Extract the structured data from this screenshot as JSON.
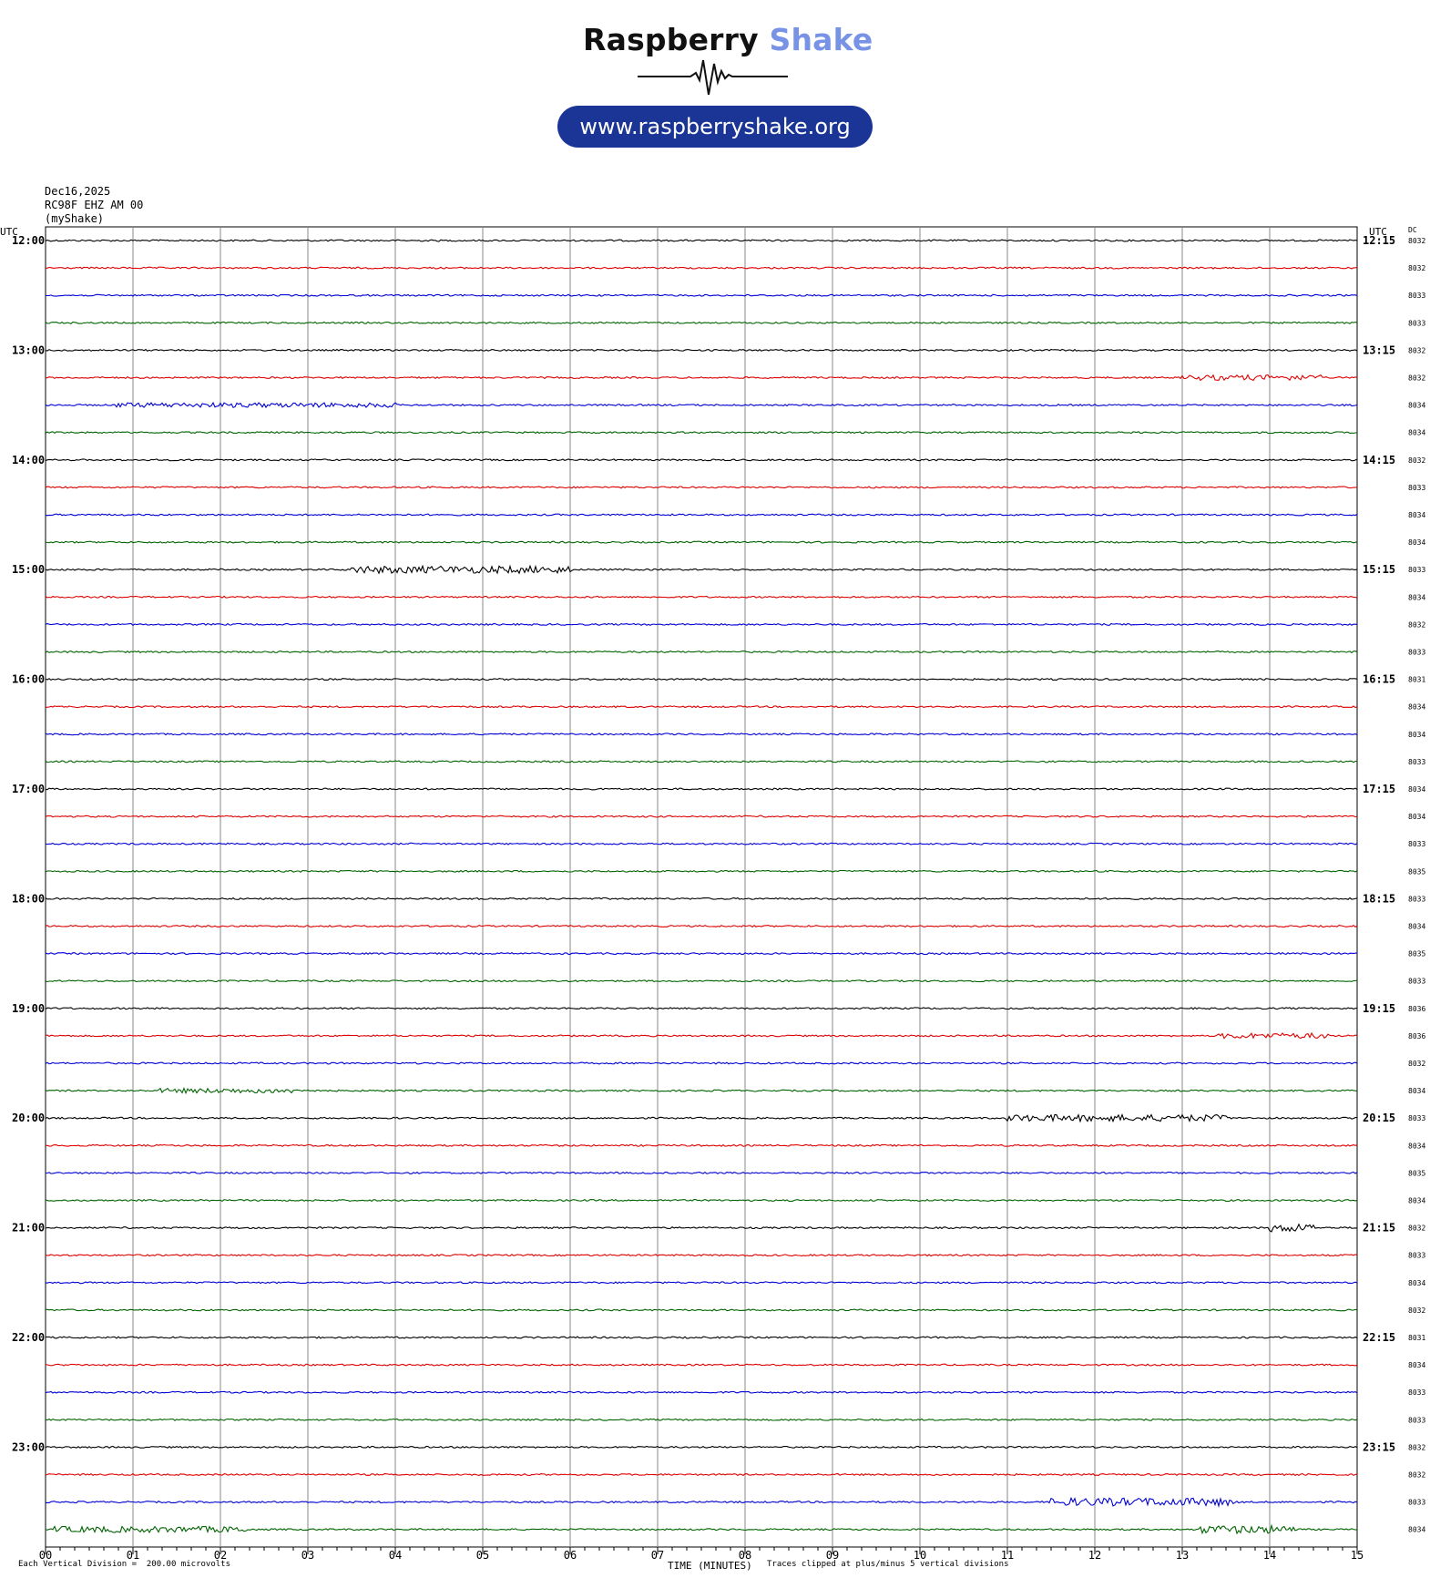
{
  "logo": {
    "brand_word1": "Raspberry",
    "brand_word2": "Shake",
    "url": "www.raspberryshake.org",
    "icon": "seismograph-wave-icon",
    "colors": {
      "dark": "#111111",
      "accent": "#7893e6",
      "pill": "#1a3596"
    }
  },
  "header": {
    "date": "Dec16,2025",
    "station": "RC98F EHZ AM 00",
    "source": "(myShake)"
  },
  "chart_data": {
    "type": "line",
    "title": "",
    "left_axis_header": "UTC",
    "right_axis_header": "UTC",
    "dc_header": "DC",
    "xlabel": "TIME (MINUTES)",
    "xlim": [
      0,
      15
    ],
    "x_ticks": [
      "00",
      "01",
      "02",
      "03",
      "04",
      "05",
      "06",
      "07",
      "08",
      "09",
      "10",
      "11",
      "12",
      "13",
      "14",
      "15"
    ],
    "trace_colors": [
      "#000000",
      "#e00000",
      "#0000d8",
      "#006400"
    ],
    "rows_per_hour": 4,
    "minutes_per_row": 15,
    "left_hour_labels": [
      "12:00",
      "13:00",
      "14:00",
      "15:00",
      "16:00",
      "17:00",
      "18:00",
      "19:00",
      "20:00",
      "21:00",
      "22:00",
      "23:00"
    ],
    "right_hour_labels": [
      "12:15",
      "13:15",
      "14:15",
      "15:15",
      "16:15",
      "17:15",
      "18:15",
      "19:15",
      "20:15",
      "21:15",
      "22:15",
      "23:15"
    ],
    "dc_offsets": [
      "8032",
      "8032",
      "8033",
      "8033",
      "8032",
      "8032",
      "8034",
      "8034",
      "8032",
      "8033",
      "8034",
      "8034",
      "8033",
      "8034",
      "8032",
      "8033",
      "8031",
      "8034",
      "8034",
      "8033",
      "8034",
      "8034",
      "8033",
      "8035",
      "8033",
      "8034",
      "8035",
      "8033",
      "8036",
      "8036",
      "8032",
      "8034",
      "8033",
      "8034",
      "8035",
      "8034",
      "8032",
      "8033",
      "8034",
      "8032",
      "8031",
      "8034",
      "8033",
      "8033",
      "8032",
      "8032",
      "8033",
      "8034"
    ],
    "trace_bursts": [
      {
        "row": 5,
        "from_min": 13.0,
        "to_min": 14.6,
        "level": 0.6
      },
      {
        "row": 6,
        "from_min": 0.8,
        "to_min": 4.0,
        "level": 0.5
      },
      {
        "row": 12,
        "from_min": 3.5,
        "to_min": 6.0,
        "level": 0.9
      },
      {
        "row": 29,
        "from_min": 13.4,
        "to_min": 14.7,
        "level": 0.6
      },
      {
        "row": 31,
        "from_min": 1.3,
        "to_min": 3.0,
        "level": 0.5
      },
      {
        "row": 32,
        "from_min": 11.0,
        "to_min": 13.5,
        "level": 0.8
      },
      {
        "row": 36,
        "from_min": 14.0,
        "to_min": 14.5,
        "level": 1.0
      },
      {
        "row": 46,
        "from_min": 11.5,
        "to_min": 13.6,
        "level": 1.0
      },
      {
        "row": 47,
        "from_min": 0.1,
        "to_min": 2.3,
        "level": 0.7
      },
      {
        "row": 47,
        "from_min": 13.2,
        "to_min": 14.3,
        "level": 1.0
      }
    ]
  },
  "footer": {
    "scale": "Each Vertical Division =  200.00 microvolts",
    "clip": "Traces clipped at plus/minus 5 vertical divisions"
  }
}
